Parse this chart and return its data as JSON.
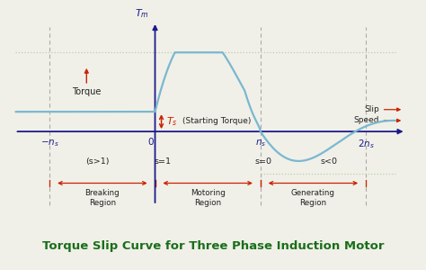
{
  "title": "Torque Slip Curve for Three Phase Induction Motor",
  "title_color": "#1a6e1a",
  "title_fontsize": 9.5,
  "bg_color": "#f0f0e8",
  "curve_color": "#7ab8d0",
  "axis_color": "#1a1a8c",
  "dashed_color": "#aaaaaa",
  "dotted_color": "#bbccaa",
  "red_color": "#cc2200",
  "text_color": "#222222",
  "xlim": [
    -1.35,
    2.45
  ],
  "ylim": [
    -0.72,
    1.05
  ]
}
